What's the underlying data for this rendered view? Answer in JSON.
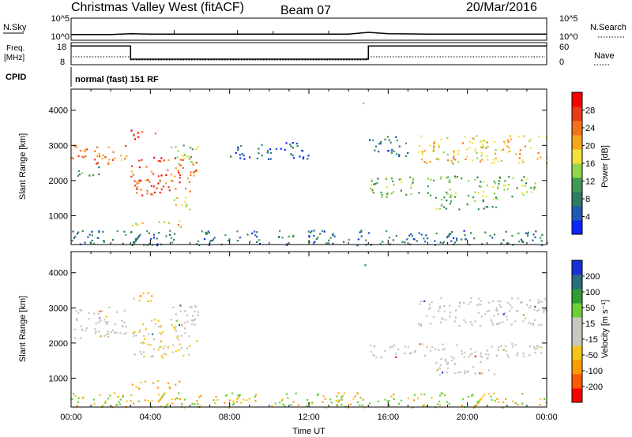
{
  "header": {
    "station": "Christmas Valley West (fitACF)",
    "beam": "Beam 07",
    "date": "20/Mar/2016"
  },
  "sky_panel": {
    "left_label": "N.Sky",
    "left_ticks": [
      "10^5",
      "10^0"
    ],
    "right_label": "N.Search",
    "right_ticks": [
      "10^5",
      "10^0"
    ]
  },
  "freq_panel": {
    "left_label_1": "Freq.",
    "left_label_2": "[MHz]",
    "left_ticks": [
      "18",
      "8"
    ],
    "right_label": "Nave",
    "right_ticks": [
      "60",
      "0"
    ]
  },
  "cpid": {
    "label": "CPID",
    "mode": "normal (fast) 151 RF"
  },
  "colors": {
    "power_scale": [
      "#0b24ff",
      "#1f5ab4",
      "#2e7d60",
      "#3f9a52",
      "#8fd64a",
      "#f4e13a",
      "#f8a61e",
      "#f4711b",
      "#ea3b19",
      "#ff0000"
    ],
    "velocity_scale": [
      "#ff0000",
      "#ff5a00",
      "#ff9a00",
      "#f4c418",
      "#c8c8c0",
      "#c8c8c0",
      "#6cd038",
      "#2f9a36",
      "#2a6e80",
      "#1930d6"
    ],
    "ground_scatter": "#c4c4bc"
  },
  "chart_data": [
    {
      "type": "line",
      "name": "sky-noise",
      "ylim": [
        1,
        100000
      ],
      "scale": "log",
      "x": [
        "00:00",
        "02:00",
        "03:00",
        "04:00",
        "06:00",
        "08:00",
        "10:00",
        "12:00",
        "14:00",
        "15:00",
        "16:00",
        "18:00",
        "20:00",
        "22:00",
        "24:00"
      ],
      "values": [
        20,
        20,
        30,
        25,
        25,
        25,
        25,
        25,
        25,
        60,
        30,
        25,
        25,
        25,
        25
      ]
    },
    {
      "type": "line",
      "name": "frequency",
      "ylim": [
        8,
        18
      ],
      "x": [
        "00:00",
        "03:00",
        "03:00",
        "15:00",
        "15:00",
        "24:00"
      ],
      "values": [
        16.5,
        16.5,
        10.5,
        10.5,
        16.5,
        16.5
      ]
    },
    {
      "type": "heatmap",
      "name": "power",
      "title": "",
      "xlabel": "",
      "ylabel": "Slant Range [km]",
      "colorbar_label": "Power [dB]",
      "colorbar_ticks": [
        4,
        8,
        12,
        16,
        20,
        24,
        28
      ],
      "x_range_hours": [
        0,
        24
      ],
      "ylim": [
        180,
        4600
      ],
      "yticks": [
        1000,
        2000,
        3000,
        4000
      ],
      "regions": [
        {
          "t0": 0.0,
          "t1": 2.8,
          "r0": 2450,
          "r1": 3050,
          "level": 0.75
        },
        {
          "t0": 0.2,
          "t1": 1.6,
          "r0": 2150,
          "r1": 2450,
          "level": 0.35
        },
        {
          "t0": 3.0,
          "t1": 6.3,
          "r0": 1600,
          "r1": 2700,
          "level": 0.85
        },
        {
          "t0": 5.0,
          "t1": 6.4,
          "r0": 2500,
          "r1": 3100,
          "level": 0.45
        },
        {
          "t0": 3.0,
          "t1": 4.4,
          "r0": 3200,
          "r1": 3450,
          "level": 0.95
        },
        {
          "t0": 3.0,
          "t1": 5.5,
          "r0": 700,
          "r1": 900,
          "level": 0.6
        },
        {
          "t0": 5.0,
          "t1": 6.0,
          "r0": 1200,
          "r1": 1600,
          "level": 0.5
        },
        {
          "t0": 8.0,
          "t1": 12.0,
          "r0": 2600,
          "r1": 3100,
          "level": 0.15
        },
        {
          "t0": 14.7,
          "t1": 14.85,
          "r0": 4000,
          "r1": 4300,
          "level": 0.55
        },
        {
          "t0": 15.0,
          "t1": 17.0,
          "r0": 2700,
          "r1": 3300,
          "level": 0.2
        },
        {
          "t0": 15.0,
          "t1": 23.5,
          "r0": 1550,
          "r1": 2150,
          "level": 0.4
        },
        {
          "t0": 18.3,
          "t1": 21.5,
          "r0": 1200,
          "r1": 1600,
          "level": 0.35
        },
        {
          "t0": 17.5,
          "t1": 24.0,
          "r0": 2500,
          "r1": 3300,
          "level": 0.6
        },
        {
          "t0": 0.0,
          "t1": 24.0,
          "r0": 180,
          "r1": 600,
          "level": 0.2
        }
      ]
    },
    {
      "type": "heatmap",
      "name": "velocity",
      "title": "",
      "xlabel": "Time UT",
      "ylabel": "Slant Range [km]",
      "colorbar_label": "Velocity [m s⁻¹]",
      "colorbar_ticks": [
        -200,
        -100,
        -50,
        -15,
        15,
        50,
        100,
        200
      ],
      "x_ticks": [
        "00:00",
        "04:00",
        "08:00",
        "12:00",
        "16:00",
        "20:00",
        "00:00"
      ],
      "x_range_hours": [
        0,
        24
      ],
      "ylim": [
        180,
        4600
      ],
      "yticks": [
        1000,
        2000,
        3000,
        4000
      ],
      "regions": [
        {
          "t0": 0.0,
          "t1": 2.8,
          "r0": 2150,
          "r1": 3050,
          "kind": "gs"
        },
        {
          "t0": 3.0,
          "t1": 6.3,
          "r0": 1600,
          "r1": 2700,
          "kind": "mix"
        },
        {
          "t0": 5.0,
          "t1": 6.4,
          "r0": 2500,
          "r1": 3100,
          "kind": "gs"
        },
        {
          "t0": 3.0,
          "t1": 4.4,
          "r0": 3200,
          "r1": 3500,
          "kind": "neg"
        },
        {
          "t0": 3.0,
          "t1": 5.5,
          "r0": 700,
          "r1": 950,
          "kind": "neg"
        },
        {
          "t0": 14.7,
          "t1": 14.85,
          "r0": 4000,
          "r1": 4300,
          "kind": "pos"
        },
        {
          "t0": 15.0,
          "t1": 24.0,
          "r0": 1600,
          "r1": 2000,
          "kind": "gs"
        },
        {
          "t0": 18.3,
          "t1": 21.5,
          "r0": 1100,
          "r1": 1600,
          "kind": "gs"
        },
        {
          "t0": 17.5,
          "t1": 24.0,
          "r0": 2500,
          "r1": 3300,
          "kind": "gs"
        },
        {
          "t0": 0.0,
          "t1": 24.0,
          "r0": 180,
          "r1": 600,
          "kind": "low"
        }
      ]
    }
  ]
}
